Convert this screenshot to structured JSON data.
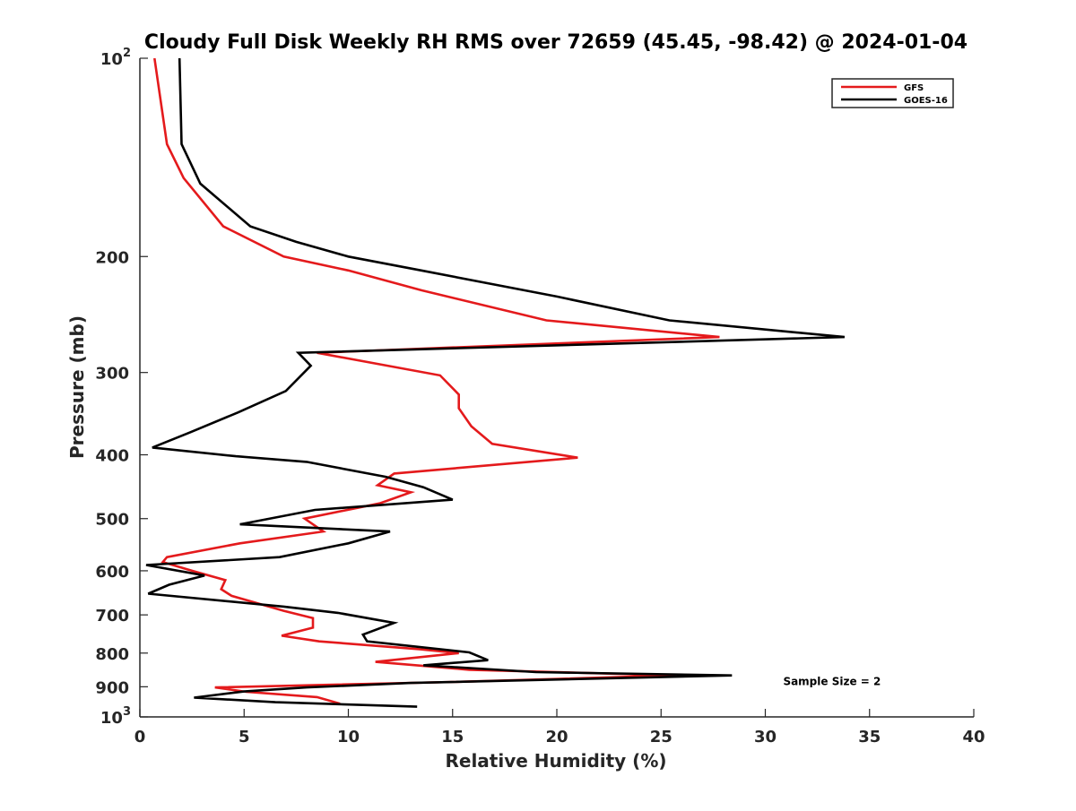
{
  "chart_data": {
    "type": "line",
    "title": "Cloudy Full Disk Weekly RH RMS over 72659 (45.45, -98.42) @ 2024-01-04",
    "xlabel": "Relative Humidity (%)",
    "ylabel": "Pressure (mb)",
    "xlim": [
      0,
      40
    ],
    "ylim": [
      100,
      1000
    ],
    "yscale": "log",
    "y_reversed": true,
    "grid": false,
    "legend_position": "top-right",
    "x_ticks": [
      {
        "value": 0,
        "label": "0"
      },
      {
        "value": 5,
        "label": "5"
      },
      {
        "value": 10,
        "label": "10"
      },
      {
        "value": 15,
        "label": "15"
      },
      {
        "value": 20,
        "label": "20"
      },
      {
        "value": 25,
        "label": "25"
      },
      {
        "value": 30,
        "label": "30"
      },
      {
        "value": 35,
        "label": "35"
      },
      {
        "value": 40,
        "label": "40"
      }
    ],
    "y_ticks": [
      {
        "value": 100,
        "base": "10",
        "exp": "2"
      },
      {
        "value": 200,
        "label": "200"
      },
      {
        "value": 300,
        "label": "300"
      },
      {
        "value": 400,
        "label": "400"
      },
      {
        "value": 500,
        "label": "500"
      },
      {
        "value": 600,
        "label": "600"
      },
      {
        "value": 700,
        "label": "700"
      },
      {
        "value": 800,
        "label": "800"
      },
      {
        "value": 900,
        "label": "900"
      },
      {
        "value": 1000,
        "base": "10",
        "exp": "3"
      }
    ],
    "series": [
      {
        "name": "GFS",
        "color": "#e41a1c",
        "points": [
          [
            0.7,
            100
          ],
          [
            1.3,
            135
          ],
          [
            2.1,
            152
          ],
          [
            4.0,
            180
          ],
          [
            6.9,
            200
          ],
          [
            10.0,
            210
          ],
          [
            13.5,
            225
          ],
          [
            19.5,
            250
          ],
          [
            27.8,
            265
          ],
          [
            8.5,
            280
          ],
          [
            14.4,
            303
          ],
          [
            15.3,
            324
          ],
          [
            15.3,
            340
          ],
          [
            15.9,
            362
          ],
          [
            16.9,
            385
          ],
          [
            21.0,
            404
          ],
          [
            12.2,
            427
          ],
          [
            11.4,
            445
          ],
          [
            13.0,
            456
          ],
          [
            11.5,
            474
          ],
          [
            7.9,
            500
          ],
          [
            8.8,
            523
          ],
          [
            4.8,
            545
          ],
          [
            1.3,
            572
          ],
          [
            1.1,
            582
          ],
          [
            2.5,
            600
          ],
          [
            4.1,
            620
          ],
          [
            3.9,
            640
          ],
          [
            4.4,
            655
          ],
          [
            6.9,
            690
          ],
          [
            8.3,
            708
          ],
          [
            8.3,
            732
          ],
          [
            6.8,
            753
          ],
          [
            8.6,
            768
          ],
          [
            13.4,
            789
          ],
          [
            15.3,
            800
          ],
          [
            11.3,
            825
          ],
          [
            15.8,
            848
          ],
          [
            25.7,
            865
          ],
          [
            15.0,
            885
          ],
          [
            3.6,
            902
          ],
          [
            5.1,
            916
          ],
          [
            8.5,
            933
          ],
          [
            9.6,
            955
          ]
        ]
      },
      {
        "name": "GOES-16",
        "color": "#000000",
        "points": [
          [
            1.9,
            100
          ],
          [
            2.0,
            135
          ],
          [
            2.9,
            155
          ],
          [
            5.3,
            180
          ],
          [
            7.5,
            190
          ],
          [
            10.0,
            200
          ],
          [
            13.5,
            210
          ],
          [
            20.0,
            230
          ],
          [
            25.4,
            250
          ],
          [
            33.8,
            265
          ],
          [
            7.6,
            280
          ],
          [
            8.2,
            293
          ],
          [
            7.0,
            320
          ],
          [
            4.7,
            345
          ],
          [
            2.4,
            370
          ],
          [
            0.6,
            390
          ],
          [
            4.6,
            402
          ],
          [
            8.0,
            410
          ],
          [
            11.8,
            432
          ],
          [
            13.6,
            448
          ],
          [
            15.0,
            468
          ],
          [
            8.4,
            485
          ],
          [
            4.8,
            510
          ],
          [
            12.0,
            523
          ],
          [
            10.0,
            545
          ],
          [
            6.7,
            572
          ],
          [
            0.3,
            588
          ],
          [
            3.1,
            610
          ],
          [
            1.4,
            630
          ],
          [
            0.4,
            650
          ],
          [
            6.9,
            680
          ],
          [
            9.5,
            695
          ],
          [
            12.2,
            720
          ],
          [
            10.7,
            750
          ],
          [
            10.9,
            768
          ],
          [
            15.8,
            798
          ],
          [
            16.7,
            820
          ],
          [
            13.6,
            835
          ],
          [
            19.0,
            855
          ],
          [
            28.4,
            865
          ],
          [
            13.0,
            888
          ],
          [
            8.0,
            902
          ],
          [
            5.0,
            915
          ],
          [
            2.6,
            935
          ],
          [
            6.5,
            950
          ],
          [
            13.3,
            965
          ]
        ]
      }
    ],
    "annotations": [
      {
        "text": "Sample Size = 2",
        "x": 33.2,
        "y": 895
      }
    ]
  }
}
